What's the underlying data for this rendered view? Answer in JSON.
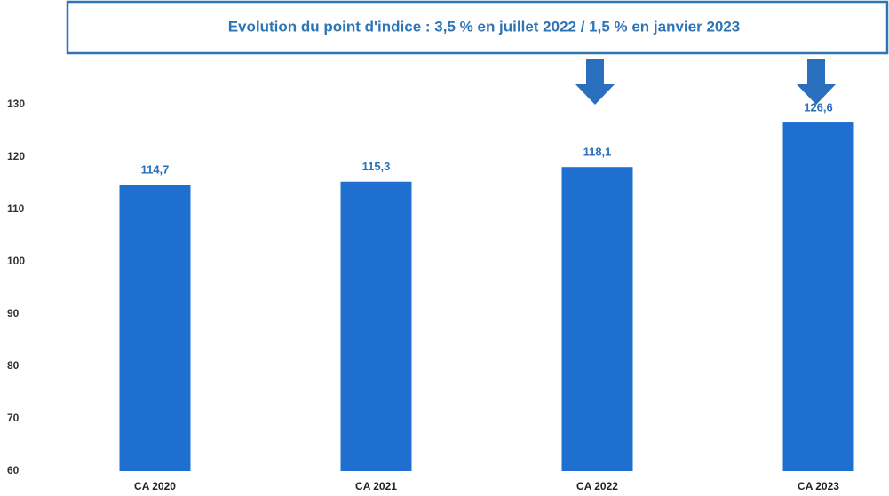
{
  "chart_data": {
    "type": "bar",
    "title": "Evolution du point d'indice : 3,5 % en juillet 2022 / 1,5 % en janvier 2023",
    "categories": [
      "CA 2020",
      "CA 2021",
      "CA 2022",
      "CA 2023"
    ],
    "values": [
      114.7,
      115.3,
      118.1,
      126.6
    ],
    "value_labels": [
      "114,7",
      "115,3",
      "118,1",
      "126,6"
    ],
    "color": "#1f6fd1",
    "ylim": [
      60,
      130
    ],
    "yticks": [
      60,
      70,
      80,
      90,
      100,
      110,
      120,
      130
    ],
    "grid": false
  }
}
